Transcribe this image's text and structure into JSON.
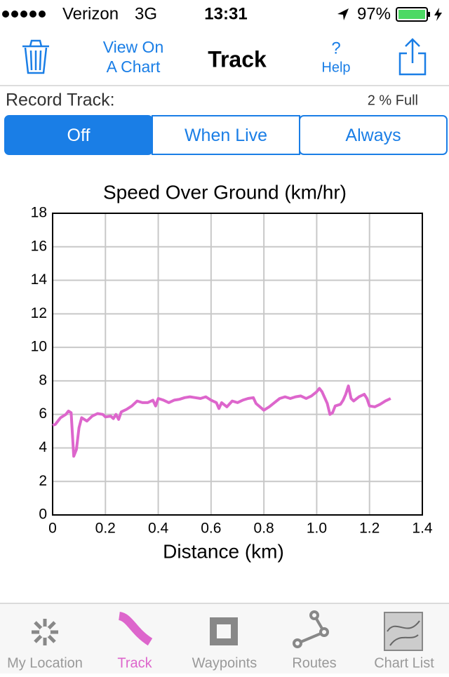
{
  "status_bar": {
    "carrier": "Verizon",
    "network": "3G",
    "time": "13:31",
    "battery": "97%"
  },
  "nav_bar": {
    "view_on_chart": [
      "View On",
      "A Chart"
    ],
    "title": "Track",
    "help_icon": "?",
    "help": "Help"
  },
  "record": {
    "label": "Record Track:",
    "capacity": "2 % Full",
    "segments": [
      "Off",
      "When Live",
      "Always"
    ],
    "selected_segment": 0
  },
  "chart_data": {
    "type": "line",
    "title": "Speed Over Ground (km/hr)",
    "x_label": "Distance (km)",
    "x": [
      0,
      0.01,
      0.03,
      0.05,
      0.06,
      0.07,
      0.08,
      0.09,
      0.1,
      0.11,
      0.13,
      0.15,
      0.17,
      0.19,
      0.2,
      0.22,
      0.23,
      0.24,
      0.25,
      0.26,
      0.28,
      0.3,
      0.32,
      0.34,
      0.36,
      0.38,
      0.39,
      0.4,
      0.42,
      0.44,
      0.46,
      0.48,
      0.5,
      0.52,
      0.54,
      0.56,
      0.58,
      0.6,
      0.62,
      0.63,
      0.64,
      0.66,
      0.68,
      0.7,
      0.72,
      0.74,
      0.76,
      0.77,
      0.8,
      0.82,
      0.84,
      0.86,
      0.88,
      0.9,
      0.92,
      0.94,
      0.96,
      0.98,
      1.0,
      1.01,
      1.02,
      1.04,
      1.05,
      1.06,
      1.07,
      1.09,
      1.1,
      1.11,
      1.12,
      1.13,
      1.14,
      1.16,
      1.18,
      1.19,
      1.2,
      1.22,
      1.24,
      1.26,
      1.28
    ],
    "values": [
      5.35,
      5.4,
      5.8,
      6.0,
      6.2,
      6.1,
      3.5,
      3.9,
      5.2,
      5.8,
      5.6,
      5.9,
      6.05,
      6.0,
      5.85,
      5.9,
      5.75,
      6.0,
      5.7,
      6.15,
      6.3,
      6.5,
      6.8,
      6.7,
      6.7,
      6.85,
      6.5,
      6.95,
      6.85,
      6.7,
      6.85,
      6.9,
      7.0,
      7.05,
      7.0,
      6.95,
      7.05,
      6.85,
      6.7,
      6.35,
      6.7,
      6.45,
      6.8,
      6.7,
      6.85,
      6.95,
      7.0,
      6.65,
      6.25,
      6.45,
      6.7,
      6.95,
      7.05,
      6.95,
      7.05,
      7.1,
      6.95,
      7.1,
      7.35,
      7.55,
      7.35,
      6.65,
      6.0,
      6.1,
      6.5,
      6.6,
      6.85,
      7.2,
      7.7,
      6.95,
      6.8,
      7.05,
      7.2,
      6.95,
      6.5,
      6.45,
      6.6,
      6.8,
      6.95
    ],
    "color": "#dd66cc",
    "xlim": [
      0,
      1.4
    ],
    "xticks": [
      0,
      0.2,
      0.4,
      0.6,
      0.8,
      {
        "value": 1,
        "label": "1.0"
      },
      1.2,
      1.4
    ],
    "ylim": [
      0,
      18
    ],
    "yticks": [
      0,
      2,
      4,
      6,
      8,
      10,
      12,
      14,
      16,
      18
    ],
    "grid": true
  },
  "tab_bar": {
    "tabs": [
      "My Location",
      "Track",
      "Waypoints",
      "Routes",
      "Chart List"
    ],
    "active_tab": 1
  }
}
